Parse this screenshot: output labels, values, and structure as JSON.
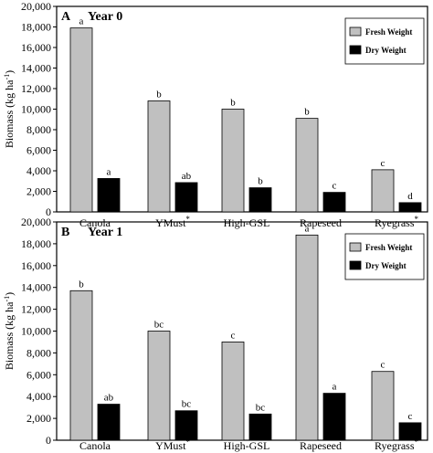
{
  "chart_data": [
    {
      "type": "bar",
      "panel_letter": "A",
      "title": "Year 0",
      "ylabel": "Biomass (kg ha-1)",
      "ylabel_parts": {
        "main": "Biomass (kg ha",
        "sup": "-1",
        "close": ")"
      },
      "ylim": [
        0,
        20000
      ],
      "yticks": [
        "0",
        "2,000",
        "4,000",
        "6,000",
        "8,000",
        "10,000",
        "12,000",
        "14,000",
        "16,000",
        "18,000",
        "20,000"
      ],
      "ytick_values": [
        0,
        2000,
        4000,
        6000,
        8000,
        10000,
        12000,
        14000,
        16000,
        18000,
        20000
      ],
      "categories": [
        "Canola",
        "YMust",
        "High-GSL",
        "Rapeseed",
        "Ryegrass"
      ],
      "category_marks": [
        "",
        "*",
        "",
        "",
        "*"
      ],
      "legend_position": "top-right",
      "series": [
        {
          "name": "Fresh Weight",
          "color": "#c0c0c0",
          "values": [
            17900,
            10800,
            10000,
            9100,
            4100
          ],
          "labels": [
            "a",
            "b",
            "b",
            "b",
            "c"
          ]
        },
        {
          "name": "Dry Weight",
          "color": "#000000",
          "values": [
            3250,
            2850,
            2350,
            1900,
            900
          ],
          "labels": [
            "a",
            "ab",
            "b",
            "c",
            "d"
          ]
        }
      ]
    },
    {
      "type": "bar",
      "panel_letter": "B",
      "title": "Year 1",
      "ylabel": "Biomass (kg ha-1)",
      "ylabel_parts": {
        "main": "Biomass (kg ha",
        "sup": "-1",
        "close": ")"
      },
      "ylim": [
        0,
        20000
      ],
      "yticks": [
        "0",
        "2,000",
        "4,000",
        "6,000",
        "8,000",
        "10,000",
        "12,000",
        "14,000",
        "16,000",
        "18,000",
        "20,000"
      ],
      "ytick_values": [
        0,
        2000,
        4000,
        6000,
        8000,
        10000,
        12000,
        14000,
        16000,
        18000,
        20000
      ],
      "categories": [
        "Canola",
        "YMust",
        "High-GSL",
        "Rapeseed",
        "Ryegrass"
      ],
      "category_marks": [
        "",
        "*",
        "",
        "",
        "*"
      ],
      "legend_position": "top-right",
      "series": [
        {
          "name": "Fresh Weight",
          "color": "#c0c0c0",
          "values": [
            13700,
            10000,
            9000,
            18800,
            6300
          ],
          "labels": [
            "b",
            "bc",
            "c",
            "a",
            "c"
          ]
        },
        {
          "name": "Dry Weight",
          "color": "#000000",
          "values": [
            3300,
            2700,
            2400,
            4300,
            1600
          ],
          "labels": [
            "ab",
            "bc",
            "bc",
            "a",
            "c"
          ]
        }
      ]
    }
  ]
}
